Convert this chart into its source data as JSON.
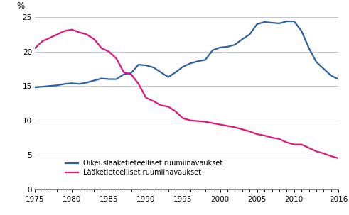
{
  "blue_x": [
    1975,
    1976,
    1977,
    1978,
    1979,
    1980,
    1981,
    1982,
    1983,
    1984,
    1985,
    1986,
    1987,
    1988,
    1989,
    1990,
    1991,
    1992,
    1993,
    1994,
    1995,
    1996,
    1997,
    1998,
    1999,
    2000,
    2001,
    2002,
    2003,
    2004,
    2005,
    2006,
    2007,
    2008,
    2009,
    2010,
    2011,
    2012,
    2013,
    2014,
    2015,
    2016
  ],
  "blue_y": [
    14.8,
    14.9,
    15.0,
    15.1,
    15.3,
    15.4,
    15.3,
    15.5,
    15.8,
    16.1,
    16.0,
    16.0,
    16.7,
    16.9,
    18.1,
    18.0,
    17.7,
    17.0,
    16.3,
    17.0,
    17.8,
    18.3,
    18.6,
    18.8,
    20.2,
    20.6,
    20.7,
    21.0,
    21.8,
    22.5,
    24.0,
    24.3,
    24.2,
    24.1,
    24.4,
    24.4,
    23.0,
    20.5,
    18.5,
    17.5,
    16.5,
    16.0
  ],
  "pink_x": [
    1975,
    1976,
    1977,
    1978,
    1979,
    1980,
    1981,
    1982,
    1983,
    1984,
    1985,
    1986,
    1987,
    1988,
    1989,
    1990,
    1991,
    1992,
    1993,
    1994,
    1995,
    1996,
    1997,
    1998,
    1999,
    2000,
    2001,
    2002,
    2003,
    2004,
    2005,
    2006,
    2007,
    2008,
    2009,
    2010,
    2011,
    2012,
    2013,
    2014,
    2015,
    2016
  ],
  "pink_y": [
    20.5,
    21.5,
    22.0,
    22.5,
    23.0,
    23.2,
    22.8,
    22.5,
    21.8,
    20.5,
    20.0,
    19.0,
    17.0,
    16.7,
    15.3,
    13.3,
    12.8,
    12.2,
    12.0,
    11.3,
    10.3,
    10.0,
    9.9,
    9.8,
    9.6,
    9.4,
    9.2,
    9.0,
    8.7,
    8.4,
    8.0,
    7.8,
    7.5,
    7.3,
    6.8,
    6.5,
    6.5,
    6.0,
    5.5,
    5.2,
    4.8,
    4.5
  ],
  "blue_color": "#3060A0",
  "pink_color": "#E0187A",
  "ylabel": "%",
  "ylim": [
    0,
    25
  ],
  "yticks": [
    0,
    5,
    10,
    15,
    20,
    25
  ],
  "xlim": [
    1975,
    2016
  ],
  "xticks": [
    1975,
    1980,
    1985,
    1990,
    1995,
    2000,
    2005,
    2010,
    2016
  ],
  "legend_blue": "Oikeuslääketieteelliset ruumiinavaukset",
  "legend_pink": "Lääketieteelliset ruumiinavaukset",
  "line_width": 1.6,
  "grid_color": "#bbbbbb",
  "background_color": "#ffffff",
  "tick_fontsize": 7.5,
  "legend_fontsize": 7.0
}
